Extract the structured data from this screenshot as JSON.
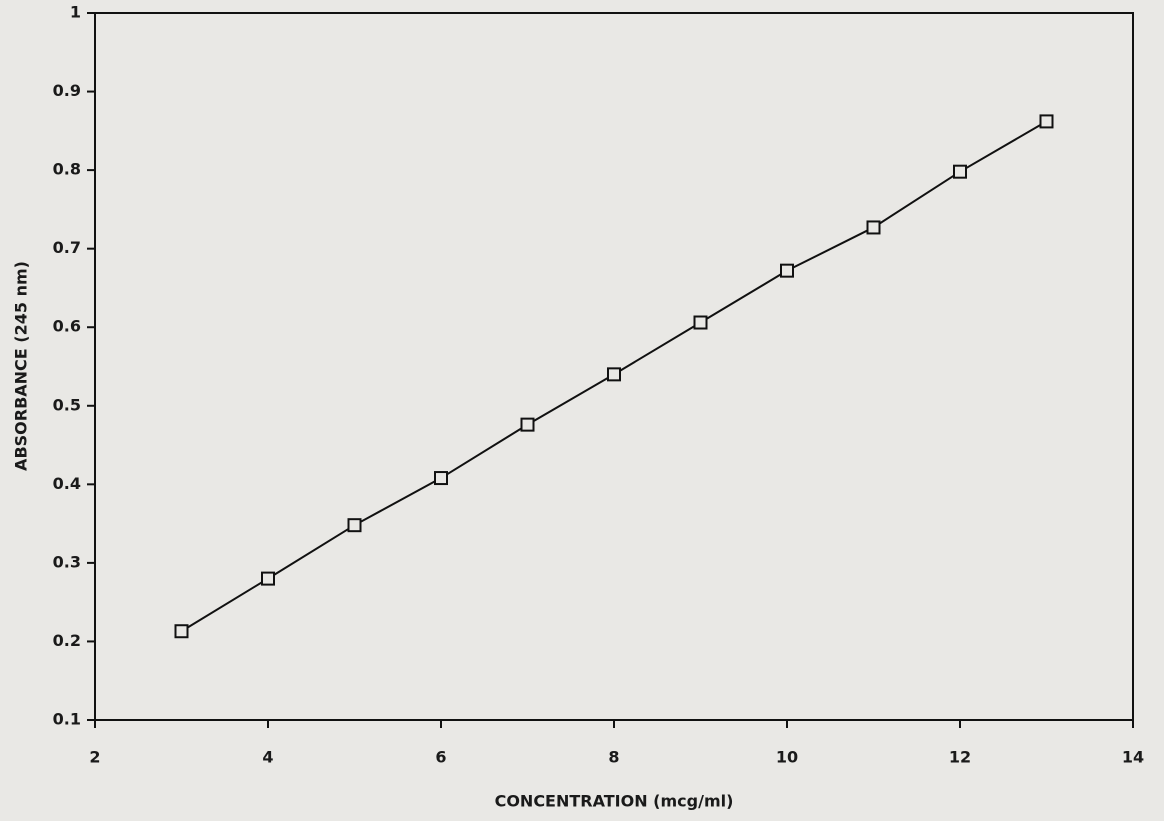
{
  "chart_data": {
    "type": "line",
    "x_label": "CONCENTRATION (mcg/ml)",
    "y_label": "ABSORBANCE (245 nm)",
    "x": [
      3,
      4,
      5,
      6,
      7,
      8,
      9,
      10,
      11,
      12,
      13
    ],
    "series": [
      {
        "color": "#111111",
        "marker": "square",
        "values": [
          0.213,
          0.28,
          0.348,
          0.408,
          0.476,
          0.54,
          0.606,
          0.672,
          0.727,
          0.798,
          0.862
        ]
      }
    ],
    "xlim": [
      2,
      14
    ],
    "xticks": [
      2,
      4,
      6,
      8,
      10,
      12,
      14
    ],
    "ylim": [
      0.1,
      1
    ],
    "yticks": [
      0.1,
      0.2,
      0.3,
      0.4,
      0.5,
      0.6,
      0.7,
      0.8,
      0.9,
      1
    ],
    "grid": false
  }
}
